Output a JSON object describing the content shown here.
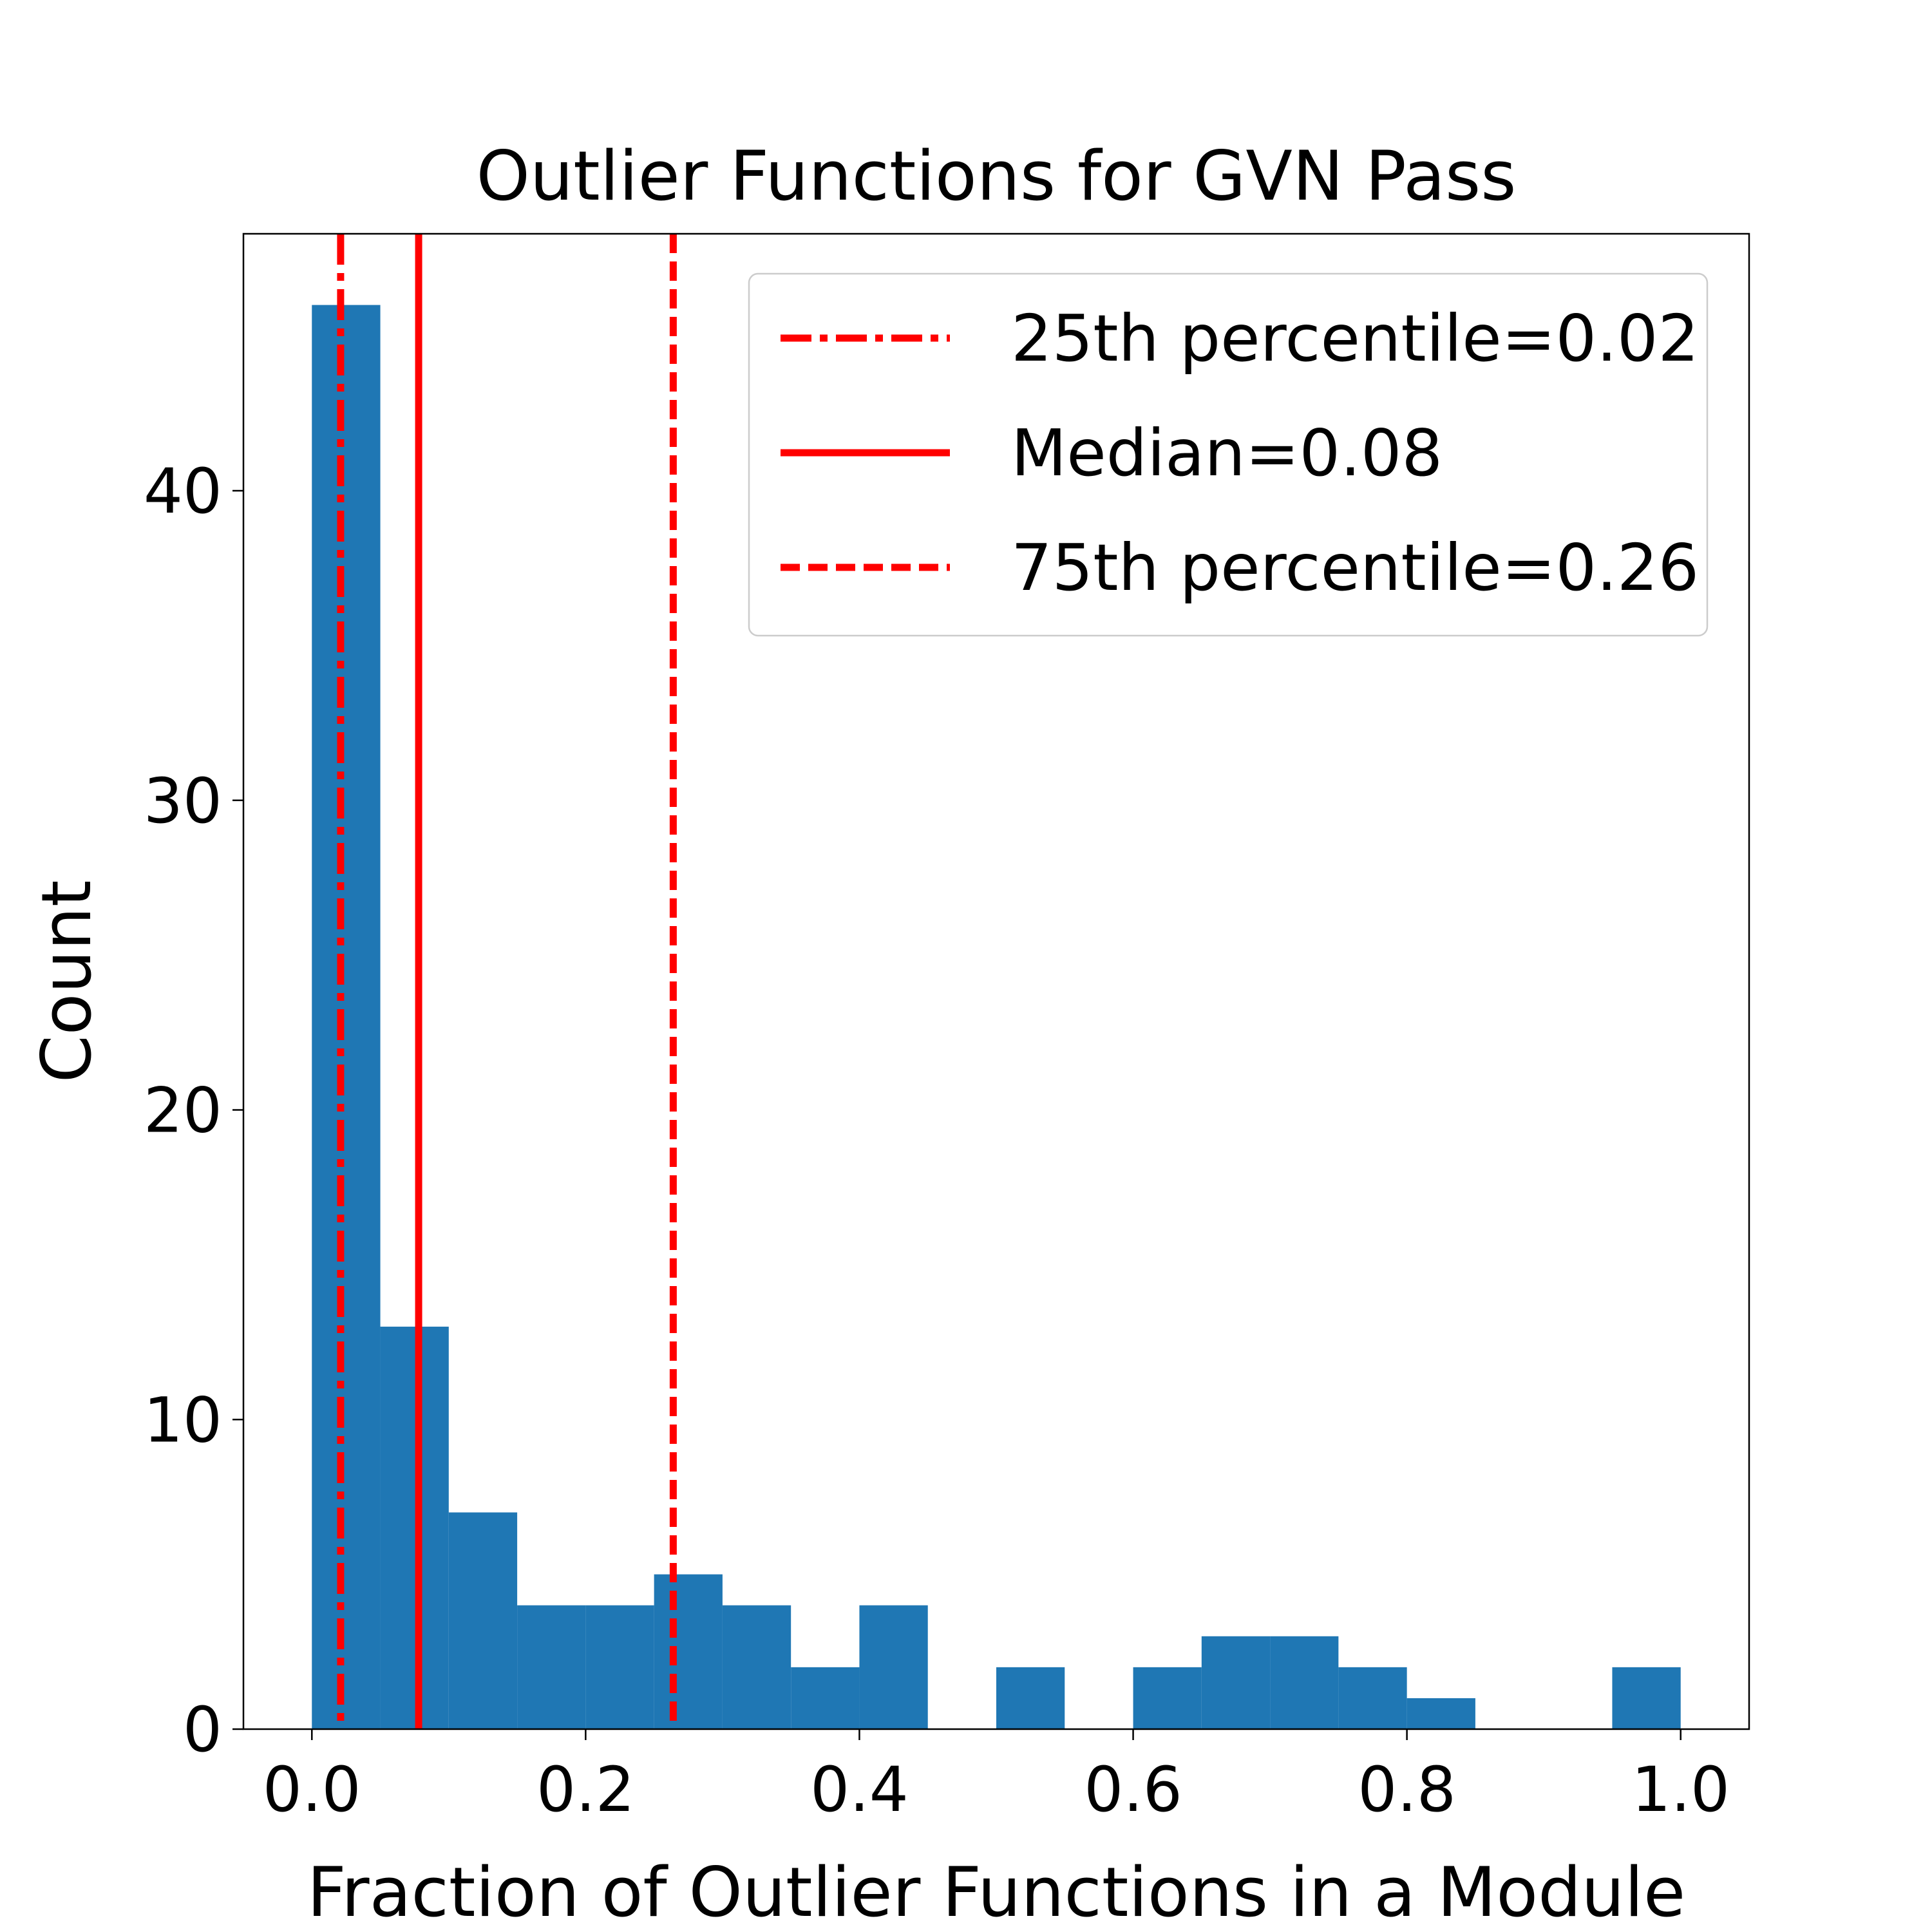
{
  "chart_data": {
    "type": "bar",
    "title": "Outlier Functions for GVN Pass",
    "xlabel": "Fraction of Outlier Functions in a Module",
    "ylabel": "Count",
    "xlim": [
      -0.05,
      1.05
    ],
    "ylim": [
      0,
      48.3
    ],
    "xticks": [
      {
        "value": 0.0,
        "label": "0.0"
      },
      {
        "value": 0.2,
        "label": "0.2"
      },
      {
        "value": 0.4,
        "label": "0.4"
      },
      {
        "value": 0.6,
        "label": "0.6"
      },
      {
        "value": 0.8,
        "label": "0.8"
      },
      {
        "value": 1.0,
        "label": "1.0"
      }
    ],
    "yticks": [
      {
        "value": 0,
        "label": "0"
      },
      {
        "value": 10,
        "label": "10"
      },
      {
        "value": 20,
        "label": "20"
      },
      {
        "value": 30,
        "label": "30"
      },
      {
        "value": 40,
        "label": "40"
      }
    ],
    "bins": [
      0.0,
      0.05,
      0.1,
      0.15,
      0.2,
      0.25,
      0.3,
      0.35,
      0.4,
      0.45,
      0.5,
      0.55,
      0.6,
      0.65,
      0.7,
      0.75,
      0.8,
      0.85,
      0.9,
      0.95,
      1.0
    ],
    "counts": [
      46,
      13,
      7,
      4,
      4,
      5,
      4,
      2,
      4,
      0,
      2,
      0,
      2,
      3,
      3,
      2,
      1,
      0,
      0,
      2
    ],
    "bar_color": "#1f77b4",
    "grid": false,
    "legend": {
      "placement": "top-right",
      "entries": [
        {
          "label": "25th percentile=0.02",
          "style": "dashdot",
          "value": 0.021,
          "color": "#ff0000"
        },
        {
          "label": "Median=0.08",
          "style": "solid",
          "value": 0.078,
          "color": "#ff0000"
        },
        {
          "label": "75th percentile=0.26",
          "style": "dashed",
          "value": 0.264,
          "color": "#ff0000"
        }
      ]
    }
  }
}
